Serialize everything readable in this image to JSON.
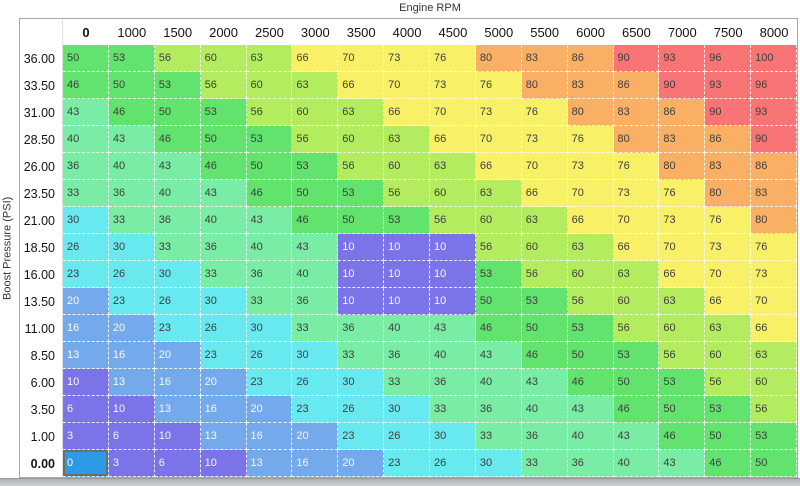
{
  "axes": {
    "x_label": "Engine RPM",
    "y_label": "Boost Pressure (PSI)"
  },
  "table": {
    "column_headers": [
      "0",
      "1000",
      "1500",
      "2000",
      "2500",
      "3000",
      "3500",
      "4000",
      "4500",
      "5000",
      "5500",
      "6000",
      "6500",
      "7000",
      "7500",
      "8000"
    ],
    "bold_column_header": "0",
    "bold_row_header": "0.00",
    "rows": [
      {
        "label": "36.00",
        "values": [
          50,
          53,
          56,
          60,
          63,
          66,
          70,
          73,
          76,
          80,
          83,
          86,
          90,
          93,
          96,
          100
        ]
      },
      {
        "label": "33.50",
        "values": [
          46,
          50,
          53,
          56,
          60,
          63,
          66,
          70,
          73,
          76,
          80,
          83,
          86,
          90,
          93,
          96
        ]
      },
      {
        "label": "31.00",
        "values": [
          43,
          46,
          50,
          53,
          56,
          60,
          63,
          66,
          70,
          73,
          76,
          80,
          83,
          86,
          90,
          93
        ]
      },
      {
        "label": "28.50",
        "values": [
          40,
          43,
          46,
          50,
          53,
          56,
          60,
          63,
          66,
          70,
          73,
          76,
          80,
          83,
          86,
          90
        ]
      },
      {
        "label": "26.00",
        "values": [
          36,
          40,
          43,
          46,
          50,
          53,
          56,
          60,
          63,
          66,
          70,
          73,
          76,
          80,
          83,
          86
        ]
      },
      {
        "label": "23.50",
        "values": [
          33,
          36,
          40,
          43,
          46,
          50,
          53,
          56,
          60,
          63,
          66,
          70,
          73,
          76,
          80,
          83
        ]
      },
      {
        "label": "21.00",
        "values": [
          30,
          33,
          36,
          40,
          43,
          46,
          50,
          53,
          56,
          60,
          63,
          66,
          70,
          73,
          76,
          80
        ]
      },
      {
        "label": "18.50",
        "values": [
          26,
          30,
          33,
          36,
          40,
          43,
          10,
          10,
          10,
          56,
          60,
          63,
          66,
          70,
          73,
          76
        ]
      },
      {
        "label": "16.00",
        "values": [
          23,
          26,
          30,
          33,
          36,
          40,
          10,
          10,
          10,
          53,
          56,
          60,
          63,
          66,
          70,
          73
        ]
      },
      {
        "label": "13.50",
        "values": [
          20,
          23,
          26,
          30,
          33,
          36,
          10,
          10,
          10,
          50,
          53,
          56,
          60,
          63,
          66,
          70
        ]
      },
      {
        "label": "11.00",
        "values": [
          16,
          20,
          23,
          26,
          30,
          33,
          36,
          40,
          43,
          46,
          50,
          53,
          56,
          60,
          63,
          66
        ]
      },
      {
        "label": "8.50",
        "values": [
          13,
          16,
          20,
          23,
          26,
          30,
          33,
          36,
          40,
          43,
          46,
          50,
          53,
          56,
          60,
          63
        ]
      },
      {
        "label": "6.00",
        "values": [
          10,
          13,
          16,
          20,
          23,
          26,
          30,
          33,
          36,
          40,
          43,
          46,
          50,
          53,
          56,
          60
        ]
      },
      {
        "label": "3.50",
        "values": [
          6,
          10,
          13,
          16,
          20,
          23,
          26,
          30,
          33,
          36,
          40,
          43,
          46,
          50,
          53,
          56
        ]
      },
      {
        "label": "1.00",
        "values": [
          3,
          6,
          10,
          13,
          16,
          20,
          23,
          26,
          30,
          33,
          36,
          40,
          43,
          46,
          50,
          53
        ]
      },
      {
        "label": "0.00",
        "values": [
          0,
          3,
          6,
          10,
          13,
          16,
          20,
          23,
          26,
          30,
          33,
          36,
          40,
          43,
          46,
          50
        ]
      }
    ],
    "selected_cell": {
      "row_label": "0.00",
      "column_label": "0",
      "value": 0,
      "row_index": 15,
      "col_index": 0
    }
  },
  "style": {
    "color_bins": [
      {
        "max": 0,
        "color": "#2D9AE8"
      },
      {
        "max": 10,
        "color": "#7B73E8"
      },
      {
        "max": 20,
        "color": "#74A9EC"
      },
      {
        "max": 30,
        "color": "#68E9F0"
      },
      {
        "max": 43,
        "color": "#79ECA6"
      },
      {
        "max": 53,
        "color": "#62E36E"
      },
      {
        "max": 63,
        "color": "#B3EC5E"
      },
      {
        "max": 76,
        "color": "#F8F066"
      },
      {
        "max": 86,
        "color": "#F9B064"
      },
      {
        "max": 100,
        "color": "#F97474"
      }
    ],
    "white_text_max": 20,
    "selected_border_color": "#6E6E62",
    "table_border_color": "#A9A9A9",
    "grid_dash_color": "#FFFFFF"
  }
}
